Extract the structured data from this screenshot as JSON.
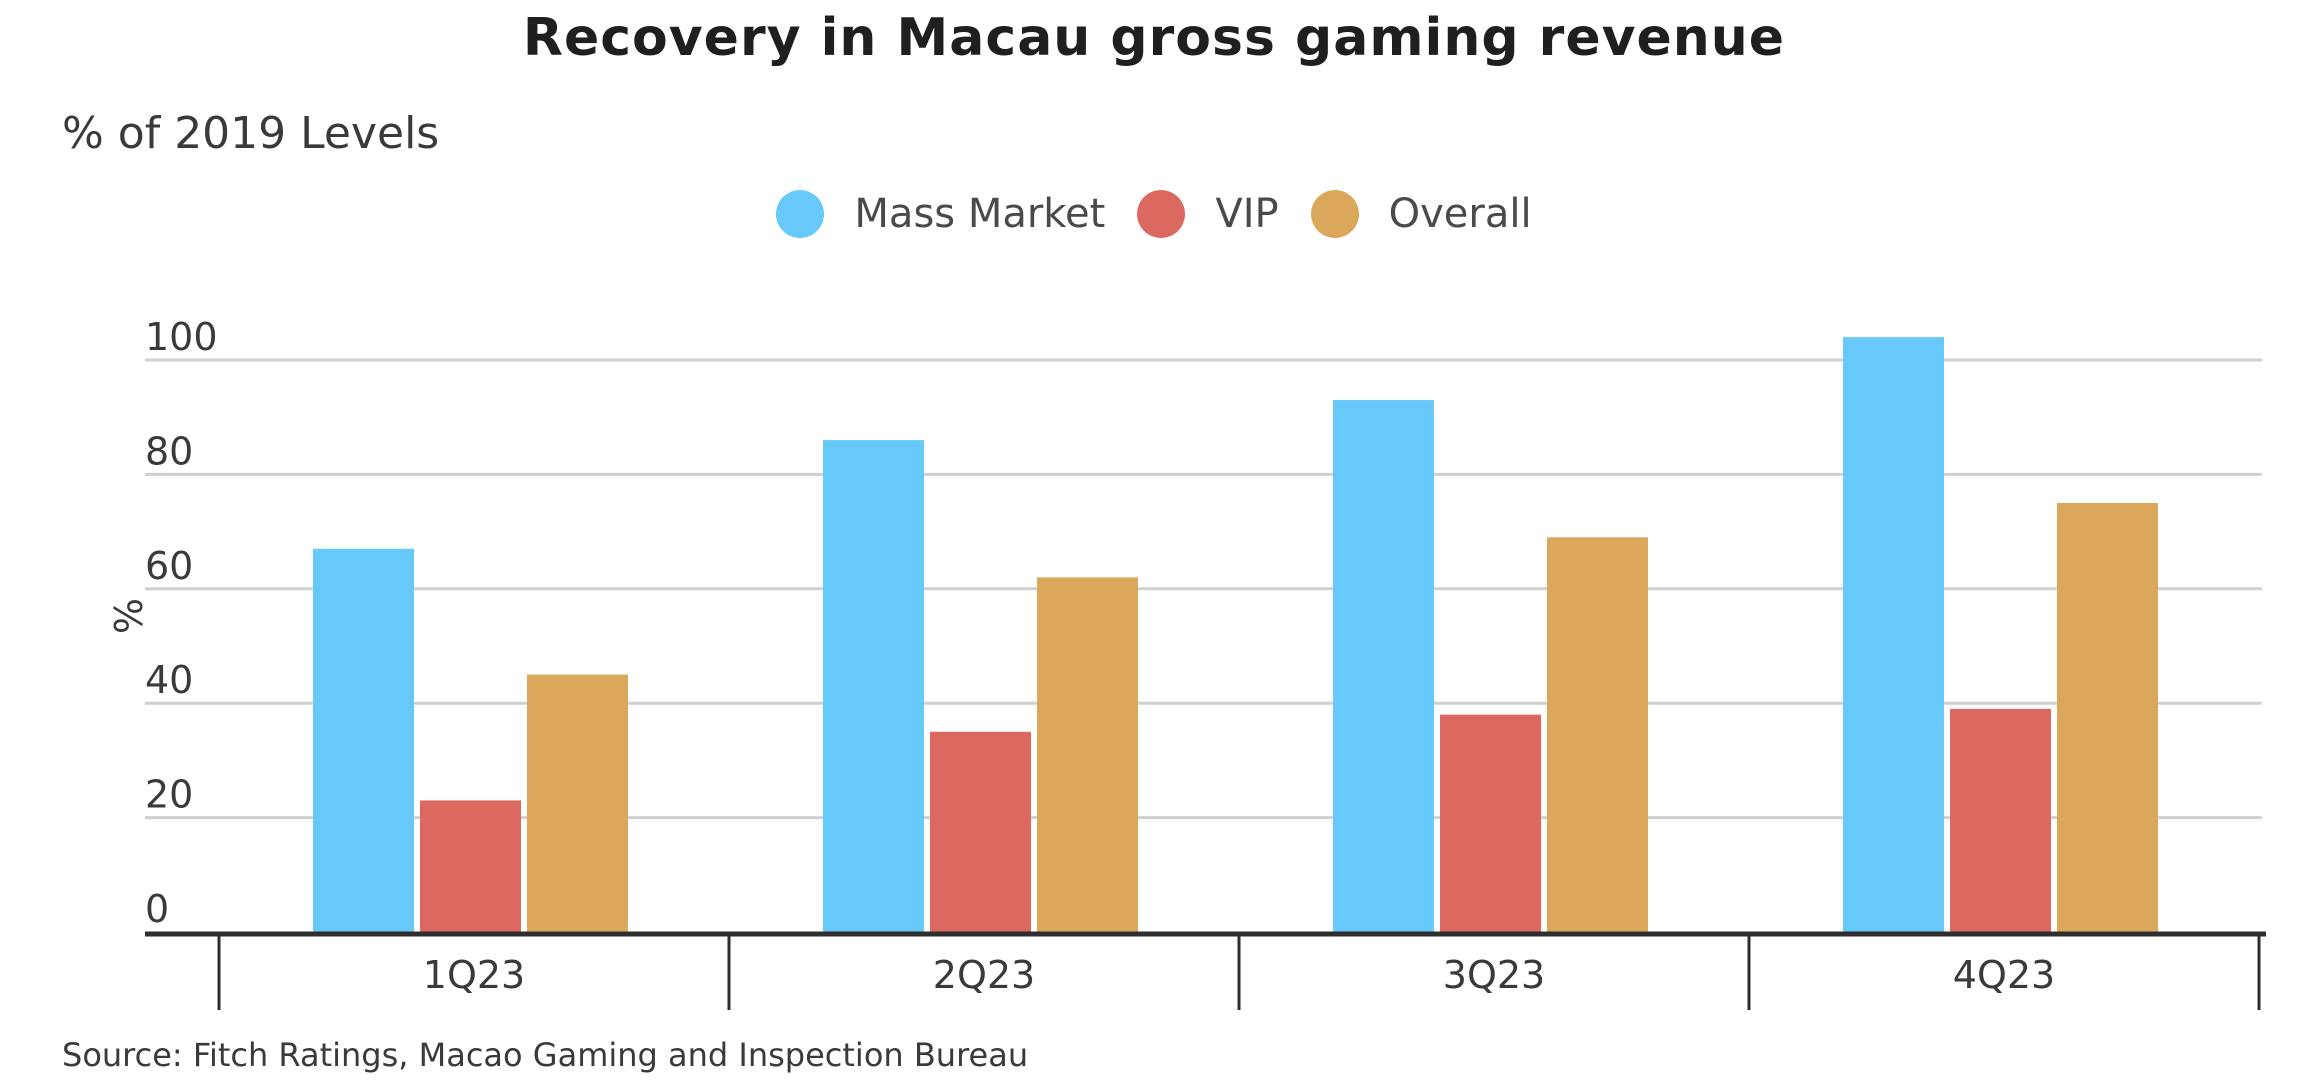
{
  "chart_data": {
    "type": "bar",
    "title": "Recovery in Macau gross gaming revenue",
    "subtitle": "% of 2019 Levels",
    "ylabel": "%",
    "xlabel": "",
    "categories": [
      "1Q23",
      "2Q23",
      "3Q23",
      "4Q23"
    ],
    "series": [
      {
        "name": "Mass Market",
        "color": "#66c9fa",
        "values": [
          67,
          86,
          93,
          104
        ]
      },
      {
        "name": "VIP",
        "color": "#db695f",
        "values": [
          23,
          35,
          38,
          39
        ]
      },
      {
        "name": "Overall",
        "color": "#dba85b",
        "values": [
          45,
          62,
          69,
          75
        ]
      }
    ],
    "yticks": [
      "0",
      "20",
      "40",
      "60",
      "80",
      "100"
    ],
    "ylim": [
      0,
      105
    ],
    "grid": true,
    "legend_position": "top-center",
    "source": "Source: Fitch Ratings, Macao Gaming and Inspection Bureau"
  }
}
